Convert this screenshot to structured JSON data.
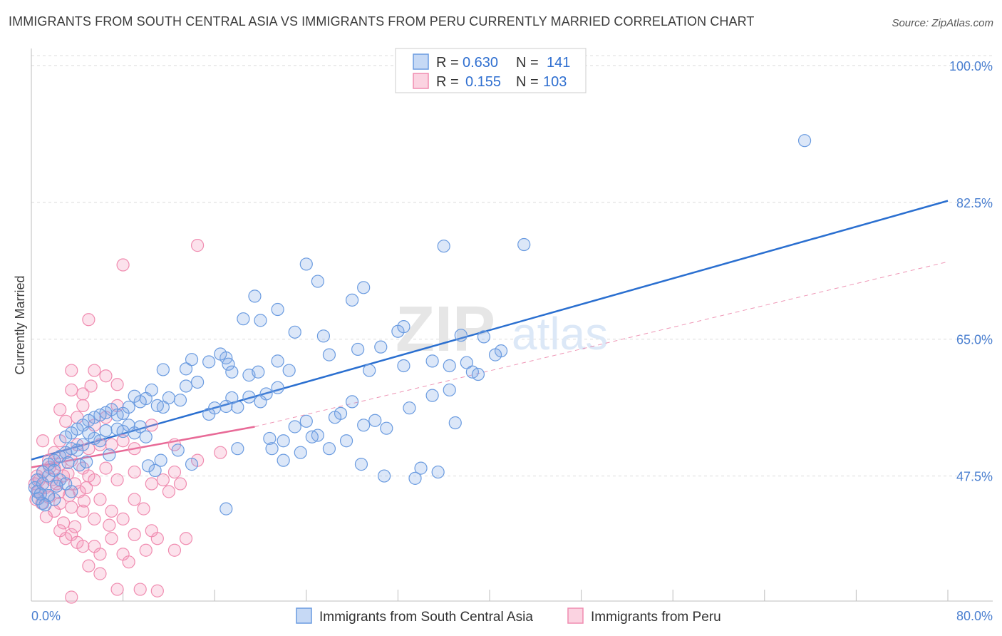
{
  "header": {
    "title": "IMMIGRANTS FROM SOUTH CENTRAL ASIA VS IMMIGRANTS FROM PERU CURRENTLY MARRIED CORRELATION CHART",
    "source": "Source: ZipAtlas.com"
  },
  "watermark": {
    "zip": "ZIP",
    "atlas": "atlas"
  },
  "legend": {
    "rows": [
      {
        "r_label": "R =",
        "r_value": "0.630",
        "n_label": "N =",
        "n_value": "141",
        "color": "#6a9be0"
      },
      {
        "r_label": "R =",
        "r_value": "0.155",
        "n_label": "N =",
        "n_value": "103",
        "color": "#f08cb0"
      }
    ]
  },
  "bottom_legend": [
    {
      "label": "Immigrants from South Central Asia",
      "color": "#6a9be0"
    },
    {
      "label": "Immigrants from Peru",
      "color": "#f08cb0"
    }
  ],
  "chart_data": {
    "type": "scatter",
    "title": "IMMIGRANTS FROM SOUTH CENTRAL ASIA VS IMMIGRANTS FROM PERU CURRENTLY MARRIED CORRELATION CHART",
    "xlabel": "",
    "ylabel": "Currently Married",
    "xlim": [
      0,
      80
    ],
    "ylim": [
      31.5,
      102
    ],
    "x_tick_labels": [
      "0.0%",
      "80.0%"
    ],
    "y_ticks": [
      47.5,
      65.0,
      82.5,
      100.0
    ],
    "y_tick_labels": [
      "47.5%",
      "65.0%",
      "82.5%",
      "100.0%"
    ],
    "grid": true,
    "legend_position": "top-center",
    "series": [
      {
        "name": "Immigrants from South Central Asia",
        "color": "#6a9be0",
        "trend": {
          "x": [
            0,
            80
          ],
          "y": [
            49.6,
            82.7
          ],
          "style": "solid",
          "color": "#2a6fd0"
        },
        "points": [
          [
            67.5,
            90.4
          ],
          [
            43.0,
            77.1
          ],
          [
            36.0,
            76.9
          ],
          [
            24.0,
            74.6
          ],
          [
            25.0,
            72.4
          ],
          [
            29.0,
            71.6
          ],
          [
            28.0,
            70.0
          ],
          [
            19.5,
            70.5
          ],
          [
            21.5,
            68.8
          ],
          [
            18.5,
            67.6
          ],
          [
            20.0,
            67.4
          ],
          [
            23.0,
            65.9
          ],
          [
            25.5,
            65.4
          ],
          [
            32.0,
            66.0
          ],
          [
            32.5,
            66.6
          ],
          [
            37.5,
            65.5
          ],
          [
            30.5,
            64.0
          ],
          [
            28.5,
            63.7
          ],
          [
            26.0,
            63.0
          ],
          [
            21.5,
            62.2
          ],
          [
            17.0,
            62.6
          ],
          [
            16.5,
            63.1
          ],
          [
            17.2,
            61.8
          ],
          [
            14.0,
            62.4
          ],
          [
            15.5,
            62.1
          ],
          [
            13.5,
            61.2
          ],
          [
            11.5,
            61.1
          ],
          [
            17.5,
            60.8
          ],
          [
            19.0,
            60.4
          ],
          [
            19.8,
            60.8
          ],
          [
            22.5,
            61.0
          ],
          [
            29.5,
            61.0
          ],
          [
            32.5,
            61.6
          ],
          [
            35.0,
            62.2
          ],
          [
            36.5,
            61.6
          ],
          [
            38.0,
            62.0
          ],
          [
            38.5,
            60.8
          ],
          [
            41.0,
            63.5
          ],
          [
            39.0,
            60.5
          ],
          [
            36.5,
            58.5
          ],
          [
            35.0,
            57.8
          ],
          [
            33.0,
            56.2
          ],
          [
            30.0,
            54.6
          ],
          [
            31.0,
            53.6
          ],
          [
            29.0,
            54.0
          ],
          [
            28.0,
            57.0
          ],
          [
            27.0,
            55.5
          ],
          [
            26.5,
            55.0
          ],
          [
            25.0,
            52.7
          ],
          [
            24.0,
            54.5
          ],
          [
            24.5,
            52.5
          ],
          [
            23.0,
            53.8
          ],
          [
            22.0,
            52.0
          ],
          [
            21.5,
            58.8
          ],
          [
            20.5,
            58.0
          ],
          [
            20.0,
            57.0
          ],
          [
            19.0,
            57.6
          ],
          [
            17.5,
            57.5
          ],
          [
            18.0,
            56.3
          ],
          [
            17.0,
            56.4
          ],
          [
            16.0,
            56.2
          ],
          [
            15.5,
            55.4
          ],
          [
            14.5,
            59.5
          ],
          [
            13.5,
            59.0
          ],
          [
            13.0,
            57.2
          ],
          [
            12.0,
            57.5
          ],
          [
            11.5,
            56.3
          ],
          [
            11.0,
            56.5
          ],
          [
            10.5,
            58.5
          ],
          [
            10.0,
            57.4
          ],
          [
            9.5,
            57.0
          ],
          [
            9.0,
            57.7
          ],
          [
            8.5,
            56.3
          ],
          [
            8.0,
            55.5
          ],
          [
            7.5,
            55.3
          ],
          [
            7.0,
            56.0
          ],
          [
            6.5,
            55.6
          ],
          [
            6.0,
            55.3
          ],
          [
            5.5,
            55.0
          ],
          [
            5.0,
            54.6
          ],
          [
            4.5,
            54.0
          ],
          [
            4.0,
            53.5
          ],
          [
            3.5,
            53.0
          ],
          [
            3.0,
            52.5
          ],
          [
            7.5,
            53.5
          ],
          [
            8.5,
            54.0
          ],
          [
            9.0,
            53.0
          ],
          [
            9.5,
            53.8
          ],
          [
            10.0,
            52.5
          ],
          [
            8.0,
            53.2
          ],
          [
            6.5,
            53.3
          ],
          [
            6.0,
            52.0
          ],
          [
            5.5,
            52.3
          ],
          [
            5.0,
            53.0
          ],
          [
            4.5,
            51.5
          ],
          [
            4.0,
            50.8
          ],
          [
            3.5,
            51.0
          ],
          [
            3.0,
            50.5
          ],
          [
            2.5,
            50.0
          ],
          [
            2.0,
            49.5
          ],
          [
            1.5,
            49.0
          ],
          [
            1.0,
            48.0
          ],
          [
            0.5,
            47.0
          ],
          [
            0.3,
            46.0
          ],
          [
            0.5,
            45.5
          ],
          [
            1.0,
            46.5
          ],
          [
            1.5,
            47.5
          ],
          [
            2.0,
            48.2
          ],
          [
            2.5,
            47.0
          ],
          [
            3.0,
            46.5
          ],
          [
            3.5,
            45.5
          ],
          [
            2.0,
            44.5
          ],
          [
            1.5,
            45.0
          ],
          [
            1.0,
            44.0
          ],
          [
            0.8,
            45.2
          ],
          [
            0.6,
            44.6
          ],
          [
            1.2,
            43.8
          ],
          [
            2.2,
            46.2
          ],
          [
            3.2,
            49.2
          ],
          [
            4.2,
            48.9
          ],
          [
            4.8,
            49.3
          ],
          [
            6.8,
            50.2
          ],
          [
            10.2,
            48.8
          ],
          [
            10.8,
            48.2
          ],
          [
            11.3,
            49.5
          ],
          [
            14.0,
            49.0
          ],
          [
            18.0,
            51.0
          ],
          [
            20.8,
            52.3
          ],
          [
            22.0,
            49.5
          ],
          [
            23.5,
            50.5
          ],
          [
            27.5,
            52.0
          ],
          [
            28.8,
            49.0
          ],
          [
            30.8,
            47.5
          ],
          [
            33.5,
            47.2
          ],
          [
            34.0,
            48.5
          ],
          [
            35.5,
            48.0
          ],
          [
            37.0,
            54.3
          ],
          [
            39.5,
            65.3
          ],
          [
            40.5,
            63.0
          ],
          [
            17.0,
            43.3
          ],
          [
            26.0,
            51.0
          ],
          [
            21.0,
            51.0
          ],
          [
            12.8,
            50.8
          ]
        ]
      },
      {
        "name": "Immigrants from Peru",
        "color": "#f08cb0",
        "trend": {
          "x": [
            0,
            19.5
          ],
          "y": [
            48.6,
            53.8
          ],
          "style": "solid",
          "color": "#e86a97"
        },
        "trend_ext": {
          "x": [
            19.5,
            80
          ],
          "y": [
            53.8,
            74.9
          ],
          "style": "dashed",
          "color": "#e86a97"
        },
        "points": [
          [
            14.5,
            77.0
          ],
          [
            8.0,
            74.5
          ],
          [
            5.0,
            67.5
          ],
          [
            5.5,
            61.0
          ],
          [
            5.2,
            59.0
          ],
          [
            7.5,
            59.2
          ],
          [
            3.5,
            61.0
          ],
          [
            3.5,
            58.5
          ],
          [
            4.5,
            58.0
          ],
          [
            4.5,
            56.5
          ],
          [
            2.5,
            56.0
          ],
          [
            6.5,
            60.3
          ],
          [
            7.5,
            56.5
          ],
          [
            6.5,
            55.0
          ],
          [
            5.5,
            54.0
          ],
          [
            4.0,
            55.0
          ],
          [
            3.0,
            54.5
          ],
          [
            2.5,
            52.0
          ],
          [
            1.0,
            52.0
          ],
          [
            2.0,
            50.5
          ],
          [
            3.0,
            50.5
          ],
          [
            4.0,
            51.5
          ],
          [
            5.0,
            51.0
          ],
          [
            6.0,
            51.5
          ],
          [
            7.0,
            51.5
          ],
          [
            8.0,
            52.0
          ],
          [
            9.0,
            51.0
          ],
          [
            10.5,
            54.0
          ],
          [
            12.5,
            51.5
          ],
          [
            14.5,
            49.5
          ],
          [
            16.5,
            50.5
          ],
          [
            1.5,
            49.5
          ],
          [
            2.0,
            48.5
          ],
          [
            2.5,
            49.0
          ],
          [
            3.5,
            49.5
          ],
          [
            4.5,
            48.5
          ],
          [
            5.0,
            47.5
          ],
          [
            5.5,
            47.0
          ],
          [
            6.5,
            48.5
          ],
          [
            7.5,
            47.0
          ],
          [
            9.0,
            48.0
          ],
          [
            1.0,
            48.0
          ],
          [
            0.5,
            47.5
          ],
          [
            0.3,
            46.5
          ],
          [
            0.6,
            45.5
          ],
          [
            1.2,
            46.0
          ],
          [
            1.8,
            47.0
          ],
          [
            2.2,
            46.5
          ],
          [
            2.8,
            47.5
          ],
          [
            3.2,
            47.8
          ],
          [
            3.8,
            46.5
          ],
          [
            4.2,
            45.5
          ],
          [
            4.8,
            46.0
          ],
          [
            0.4,
            44.5
          ],
          [
            0.9,
            44.0
          ],
          [
            1.5,
            44.8
          ],
          [
            2.5,
            44.0
          ],
          [
            3.5,
            43.5
          ],
          [
            4.5,
            43.0
          ],
          [
            5.5,
            42.0
          ],
          [
            6.0,
            44.5
          ],
          [
            7.0,
            43.0
          ],
          [
            8.0,
            42.0
          ],
          [
            9.0,
            44.5
          ],
          [
            10.5,
            46.5
          ],
          [
            11.5,
            47.0
          ],
          [
            12.5,
            48.0
          ],
          [
            13.0,
            46.5
          ],
          [
            2.8,
            41.5
          ],
          [
            2.5,
            40.5
          ],
          [
            3.0,
            39.5
          ],
          [
            3.5,
            40.0
          ],
          [
            4.0,
            39.0
          ],
          [
            4.5,
            38.5
          ],
          [
            5.5,
            38.5
          ],
          [
            6.0,
            37.5
          ],
          [
            7.0,
            39.5
          ],
          [
            8.0,
            37.5
          ],
          [
            9.0,
            40.0
          ],
          [
            10.0,
            38.0
          ],
          [
            11.0,
            39.5
          ],
          [
            12.5,
            38.0
          ],
          [
            13.5,
            39.5
          ],
          [
            5.0,
            36.0
          ],
          [
            7.5,
            33.0
          ],
          [
            9.5,
            33.0
          ],
          [
            11.0,
            32.8
          ],
          [
            3.5,
            32.0
          ],
          [
            6.0,
            35.0
          ],
          [
            8.5,
            36.5
          ],
          [
            10.5,
            40.5
          ],
          [
            2.0,
            43.0
          ],
          [
            1.3,
            42.3
          ],
          [
            3.8,
            41.0
          ],
          [
            6.8,
            41.2
          ],
          [
            9.8,
            43.3
          ],
          [
            12.0,
            45.5
          ],
          [
            0.7,
            47.0
          ],
          [
            1.6,
            48.6
          ],
          [
            2.4,
            45.4
          ],
          [
            3.3,
            45.0
          ],
          [
            4.6,
            44.3
          ]
        ]
      }
    ]
  }
}
